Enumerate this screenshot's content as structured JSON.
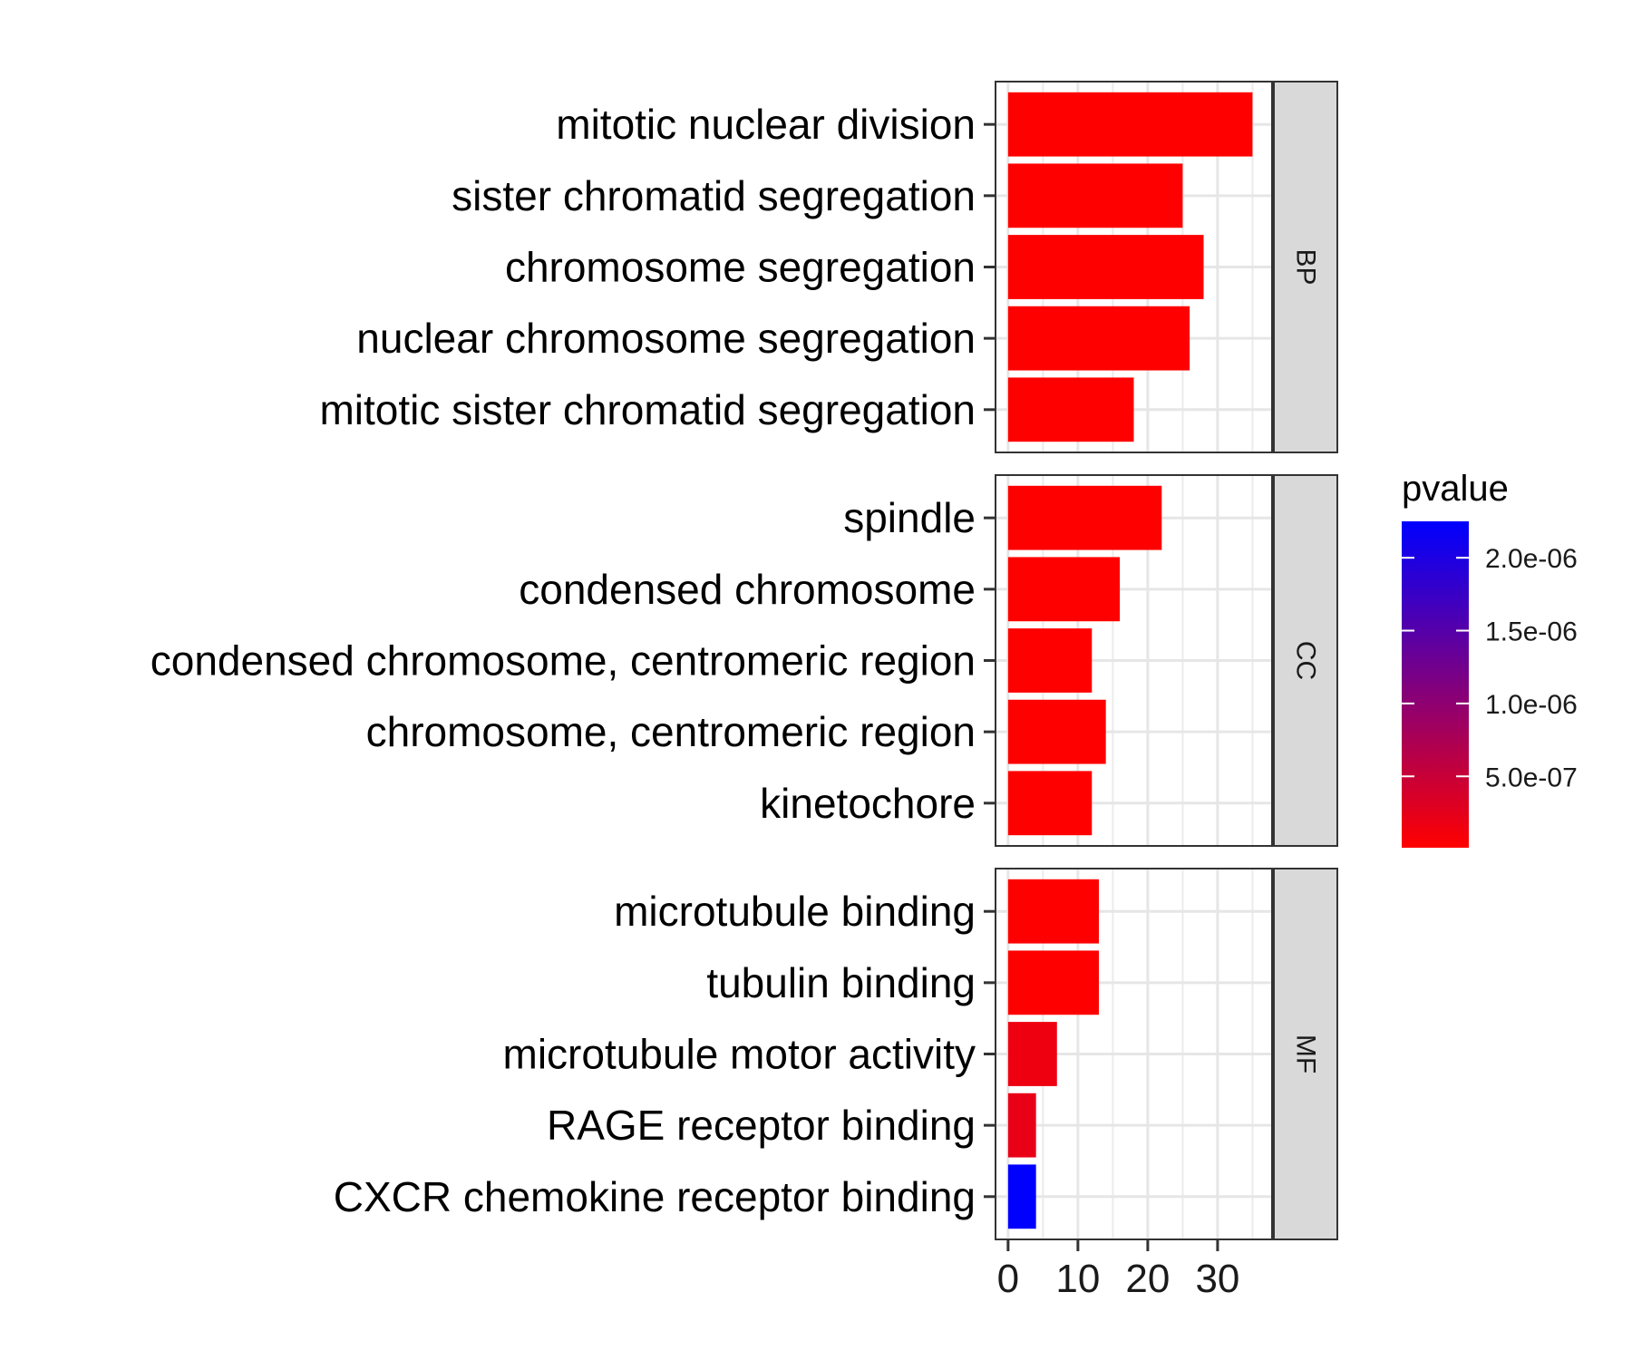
{
  "chart_data": {
    "type": "bar",
    "orientation": "horizontal",
    "facet_by": "ontology",
    "x_axis": {
      "ticks": [
        0,
        10,
        20,
        30
      ],
      "tick_labels": [
        "0",
        "10",
        "20",
        "30"
      ],
      "xlim": [
        -1.8,
        37.8
      ]
    },
    "grid": true,
    "legend": {
      "title": "pvalue",
      "type": "colorbar",
      "placement": "right",
      "low_color": "#FF0000",
      "high_color": "#0000FF",
      "range": [
        1e-08,
        2.25e-06
      ],
      "ticks": [
        5e-07,
        1e-06,
        1.5e-06,
        2e-06
      ],
      "tick_labels": [
        "5.0e-07",
        "1.0e-06",
        "1.5e-06",
        "2.0e-06"
      ]
    },
    "facets": [
      {
        "label": "BP",
        "categories": [
          "mitotic nuclear division",
          "sister chromatid segregation",
          "chromosome segregation",
          "nuclear chromosome segregation",
          "mitotic sister chromatid segregation"
        ],
        "values": [
          35,
          25,
          28,
          26,
          18
        ],
        "pvalues": [
          1e-12,
          1e-10,
          1e-10,
          1e-10,
          1e-09
        ]
      },
      {
        "label": "CC",
        "categories": [
          "spindle",
          "condensed chromosome",
          "condensed chromosome, centromeric region",
          "chromosome, centromeric region",
          "kinetochore"
        ],
        "values": [
          22,
          16,
          12,
          14,
          12
        ],
        "pvalues": [
          1e-09,
          1e-09,
          1e-08,
          1e-08,
          1e-08
        ]
      },
      {
        "label": "MF",
        "categories": [
          "microtubule binding",
          "tubulin binding",
          "microtubule motor activity",
          "RAGE receptor binding",
          "CXCR chemokine receptor binding"
        ],
        "values": [
          13,
          13,
          7,
          4,
          4
        ],
        "pvalues": [
          1e-08,
          1e-08,
          1.5e-07,
          2e-07,
          2.25e-06
        ]
      }
    ]
  }
}
